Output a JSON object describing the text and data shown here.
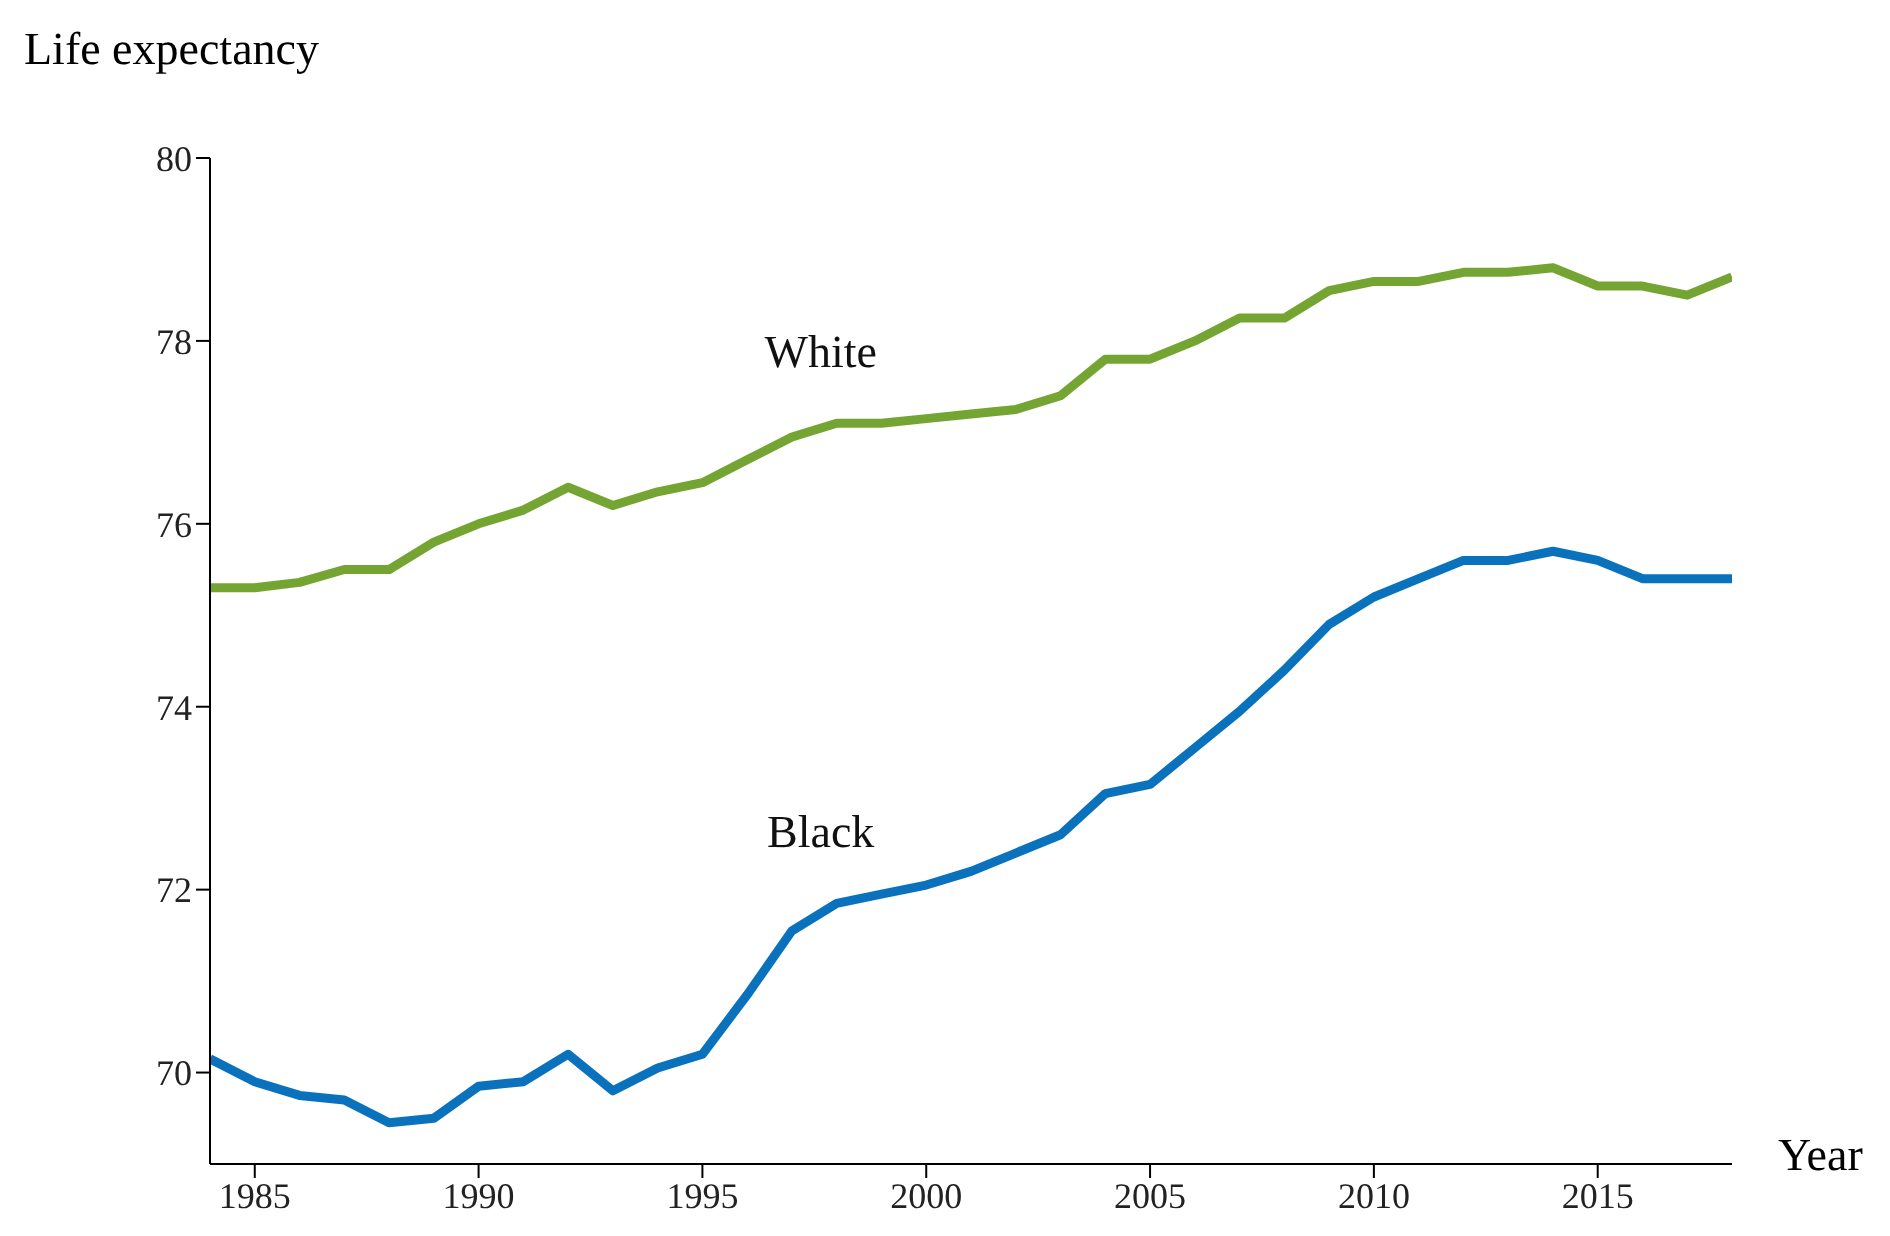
{
  "chart_data": {
    "type": "line",
    "ylabel": "Life expectancy",
    "xlabel": "Year",
    "x": [
      1984,
      1985,
      1986,
      1987,
      1988,
      1989,
      1990,
      1991,
      1992,
      1993,
      1994,
      1995,
      1996,
      1997,
      1998,
      1999,
      2000,
      2001,
      2002,
      2003,
      2004,
      2005,
      2006,
      2007,
      2008,
      2009,
      2010,
      2011,
      2012,
      2013,
      2014,
      2015,
      2016,
      2017,
      2018
    ],
    "series": [
      {
        "name": "White",
        "color": "#74a532",
        "values": [
          75.3,
          75.3,
          75.36,
          75.5,
          75.5,
          75.8,
          76.0,
          76.15,
          76.4,
          76.2,
          76.35,
          76.45,
          76.7,
          76.95,
          77.1,
          77.1,
          77.15,
          77.2,
          77.25,
          77.4,
          77.8,
          77.8,
          78.0,
          78.25,
          78.25,
          78.55,
          78.65,
          78.65,
          78.75,
          78.75,
          78.8,
          78.6,
          78.6,
          78.5,
          78.7
        ]
      },
      {
        "name": "Black",
        "color": "#0a72bd",
        "values": [
          70.15,
          69.9,
          69.75,
          69.7,
          69.45,
          69.5,
          69.85,
          69.9,
          70.2,
          69.8,
          70.05,
          70.2,
          70.85,
          71.55,
          71.85,
          71.95,
          72.05,
          72.2,
          72.4,
          72.6,
          73.05,
          73.15,
          73.55,
          73.95,
          74.4,
          74.9,
          75.2,
          75.4,
          75.6,
          75.6,
          75.7,
          75.6,
          75.4,
          75.4,
          75.4
        ]
      }
    ],
    "xlim": [
      1984,
      2018
    ],
    "xticks": [
      1985,
      1990,
      1995,
      2000,
      2005,
      2010,
      2015
    ],
    "ylim": [
      69,
      80
    ],
    "yticks": [
      70,
      72,
      74,
      76,
      78,
      80
    ],
    "grid": false,
    "legend": false,
    "marker": "none",
    "line_style": "solid"
  }
}
